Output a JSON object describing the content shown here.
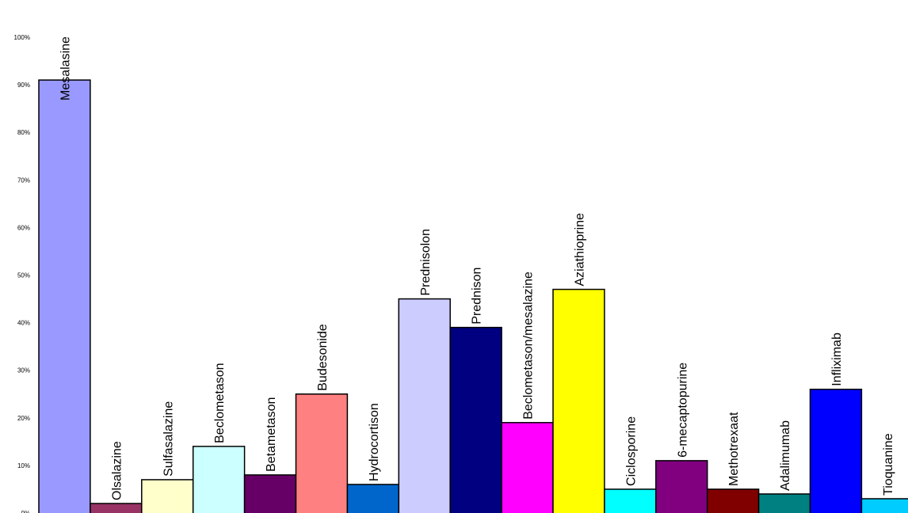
{
  "chart_data": {
    "type": "bar",
    "title": "",
    "xlabel": "",
    "ylabel": "",
    "ylim": [
      0,
      100
    ],
    "y_ticks": [
      "0%",
      "10%",
      "20%",
      "30%",
      "40%",
      "50%",
      "60%",
      "70%",
      "80%",
      "90%",
      "100%"
    ],
    "grid": false,
    "legend": "none",
    "categories": [
      "Mesalasine",
      "Olsalazine",
      "Sulfasalazine",
      "Beclometason",
      "Betametason",
      "Budesonide",
      "Hydrocortison",
      "Prednisolon",
      "Prednison",
      "Beclometason/mesalazine",
      "Aziathioprine",
      "Ciclosporine",
      "6-mecaptopurine",
      "Methotrexaat",
      "Adalimumab",
      "Infliximab",
      "Tioquanine"
    ],
    "values": [
      91,
      2,
      7,
      14,
      8,
      25,
      6,
      45,
      39,
      19,
      47,
      5,
      11,
      5,
      4,
      26,
      3
    ],
    "colors": [
      "#9999FF",
      "#993366",
      "#FFFFCC",
      "#CCFFFF",
      "#660066",
      "#FF8080",
      "#0066CC",
      "#CCCCFF",
      "#000080",
      "#FF00FF",
      "#FFFF00",
      "#00FFFF",
      "#800080",
      "#800000",
      "#008080",
      "#0000FF",
      "#00CCFF"
    ]
  }
}
